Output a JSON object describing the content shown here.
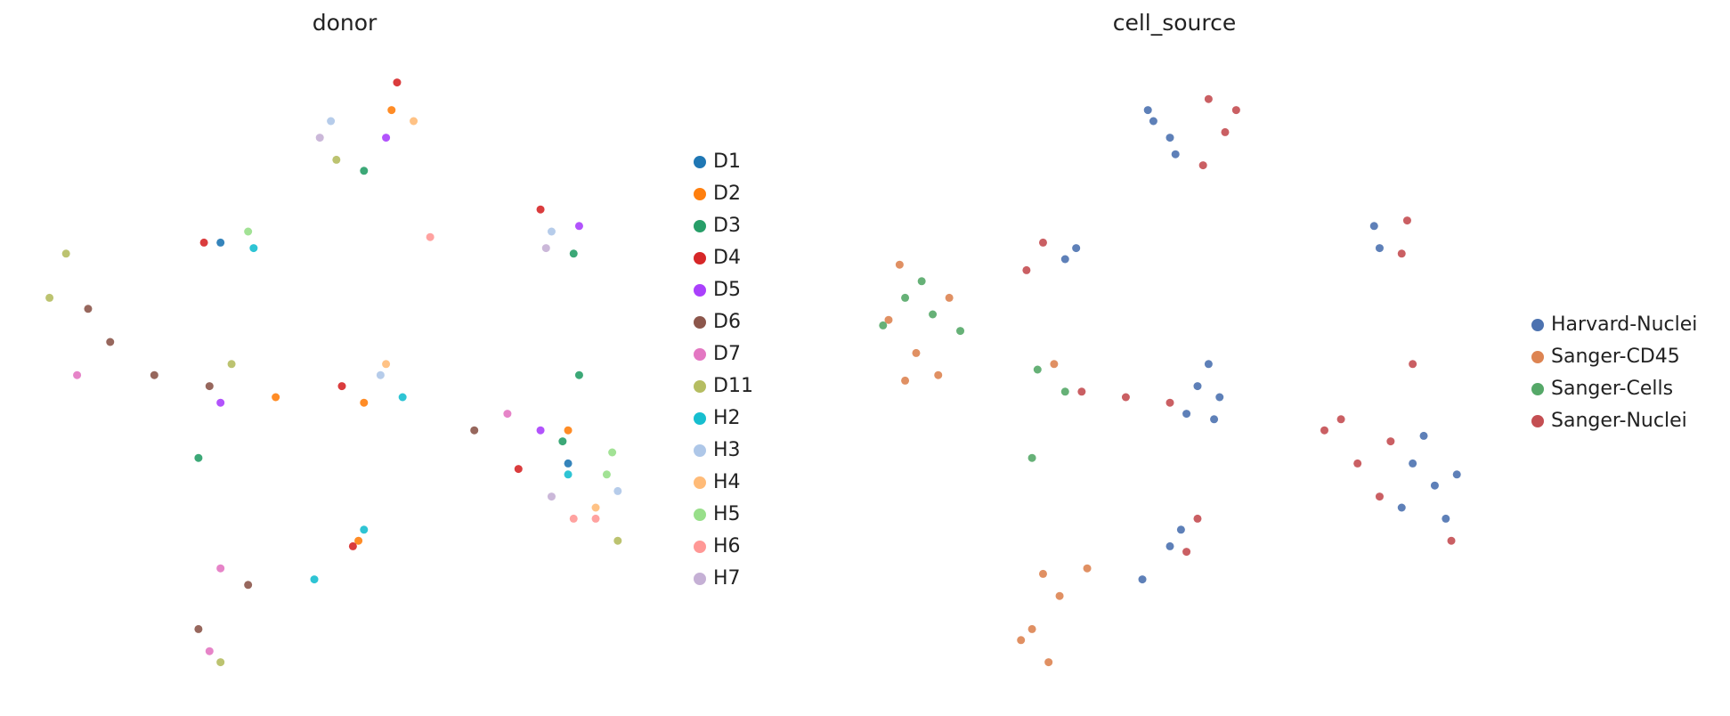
{
  "chart_data": [
    {
      "type": "scatter",
      "title": "donor",
      "xlim": [
        0,
        560
      ],
      "ylim": [
        0,
        550
      ],
      "series": [
        {
          "name": "D1",
          "color": "#1f77b4",
          "x": [
            170,
            485
          ],
          "values": [
            390,
            190
          ]
        },
        {
          "name": "D2",
          "color": "#ff7f0e",
          "x": [
            325,
            300,
            220,
            485,
            295
          ],
          "values": [
            510,
            245,
            250,
            220,
            120
          ]
        },
        {
          "name": "D3",
          "color": "#279e68",
          "x": [
            300,
            495,
            490,
            480,
            150
          ],
          "values": [
            455,
            270,
            380,
            210,
            195
          ]
        },
        {
          "name": "D4",
          "color": "#d62728",
          "x": [
            440,
            280,
            330,
            460,
            155,
            290
          ],
          "values": [
            185,
            260,
            535,
            420,
            390,
            115
          ]
        },
        {
          "name": "D5",
          "color": "#aa40fc",
          "x": [
            320,
            495,
            460,
            170
          ],
          "values": [
            485,
            405,
            220,
            245
          ]
        },
        {
          "name": "D6",
          "color": "#8c564b",
          "x": [
            50,
            70,
            110,
            160,
            400,
            195,
            150
          ],
          "values": [
            330,
            300,
            270,
            260,
            220,
            80,
            40
          ]
        },
        {
          "name": "D7",
          "color": "#e377c2",
          "x": [
            40,
            430,
            170,
            160
          ],
          "values": [
            270,
            235,
            95,
            20
          ]
        },
        {
          "name": "D11",
          "color": "#b5bd61",
          "x": [
            30,
            15,
            180,
            170,
            530,
            275
          ],
          "values": [
            380,
            340,
            280,
            10,
            120,
            465
          ]
        },
        {
          "name": "H2",
          "color": "#17becf",
          "x": [
            485,
            300,
            255,
            335,
            200
          ],
          "values": [
            180,
            130,
            85,
            250,
            385
          ]
        },
        {
          "name": "H3",
          "color": "#aec7e8",
          "x": [
            270,
            470,
            530,
            315
          ],
          "values": [
            500,
            400,
            165,
            270
          ]
        },
        {
          "name": "H4",
          "color": "#ffbb78",
          "x": [
            345,
            320,
            510
          ],
          "values": [
            500,
            280,
            150
          ]
        },
        {
          "name": "H5",
          "color": "#98df8a",
          "x": [
            520,
            525,
            195
          ],
          "values": [
            180,
            200,
            400
          ]
        },
        {
          "name": "H6",
          "color": "#ff9896",
          "x": [
            490,
            360,
            510
          ],
          "values": [
            140,
            395,
            140
          ]
        },
        {
          "name": "H7",
          "color": "#c5b0d5",
          "x": [
            465,
            260,
            470
          ],
          "values": [
            385,
            485,
            160
          ]
        }
      ]
    },
    {
      "type": "scatter",
      "title": "cell_source",
      "xlim": [
        0,
        560
      ],
      "ylim": [
        0,
        550
      ],
      "series": [
        {
          "name": "Harvard-Nuclei",
          "color": "#4c72b0",
          "x": [
            265,
            280,
            260,
            285,
            195,
            185,
            465,
            470,
            315,
            305,
            325,
            295,
            320,
            500,
            520,
            540,
            490,
            530,
            510,
            280,
            255,
            290
          ],
          "values": [
            500,
            485,
            510,
            470,
            385,
            375,
            405,
            385,
            280,
            260,
            250,
            235,
            230,
            190,
            170,
            180,
            150,
            140,
            215,
            115,
            85,
            130
          ]
        },
        {
          "name": "Sanger-CD45",
          "color": "#dd8452",
          "x": [
            35,
            25,
            50,
            70,
            80,
            40,
            175,
            165,
            180,
            155,
            170,
            145,
            205
          ],
          "values": [
            370,
            320,
            290,
            270,
            340,
            265,
            280,
            90,
            70,
            40,
            10,
            30,
            95
          ]
        },
        {
          "name": "Sanger-Cells",
          "color": "#55a868",
          "x": [
            40,
            65,
            20,
            55,
            160,
            185,
            155,
            90
          ],
          "values": [
            340,
            325,
            315,
            355,
            275,
            255,
            195,
            310
          ]
        },
        {
          "name": "Sanger-Nuclei",
          "color": "#c44e52",
          "x": [
            315,
            330,
            310,
            340,
            165,
            150,
            495,
            490,
            240,
            280,
            200,
            420,
            450,
            435,
            470,
            480,
            535,
            500,
            295,
            305
          ],
          "values": [
            520,
            490,
            460,
            510,
            390,
            365,
            410,
            380,
            250,
            245,
            255,
            220,
            190,
            230,
            160,
            210,
            120,
            280,
            110,
            140
          ]
        }
      ]
    }
  ]
}
